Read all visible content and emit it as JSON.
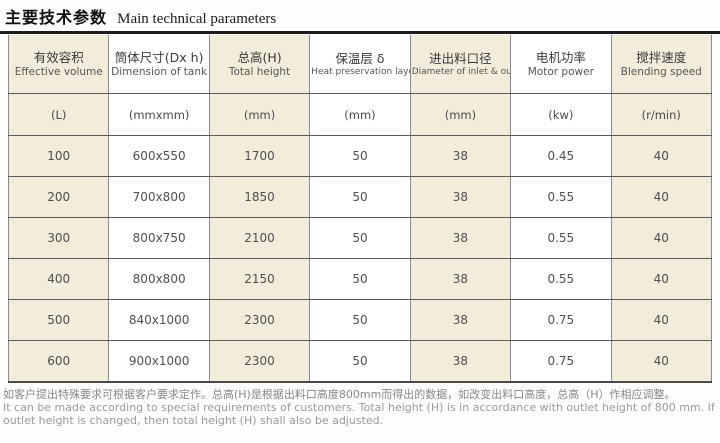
{
  "page": {
    "title_zh": "主要技术参数",
    "title_en": "Main technical parameters"
  },
  "table": {
    "columns": [
      {
        "zh": "有效容积",
        "en": "Effective volume",
        "unit": "(L)"
      },
      {
        "zh": "筒体尺寸(Dx h)",
        "en": "Dimension of tank",
        "unit": "(mmxmm)"
      },
      {
        "zh": "总高(H)",
        "en": "Total height",
        "unit": "(mm)"
      },
      {
        "zh": "保温层 δ",
        "en": "Heat preservation layer",
        "unit": "(mm)"
      },
      {
        "zh": "进出料口径",
        "en": "Diameter of inlet & outlet",
        "unit": "(mm)"
      },
      {
        "zh": "电机功率",
        "en": "Motor power",
        "unit": "(kw)"
      },
      {
        "zh": "搅拌速度",
        "en": "Blending speed",
        "unit": "(r/min)"
      }
    ],
    "rows": [
      [
        "100",
        "600x550",
        "1700",
        "50",
        "38",
        "0.45",
        "40"
      ],
      [
        "200",
        "700x800",
        "1850",
        "50",
        "38",
        "0.55",
        "40"
      ],
      [
        "300",
        "800x750",
        "2100",
        "50",
        "38",
        "0.55",
        "40"
      ],
      [
        "400",
        "800x800",
        "2150",
        "50",
        "38",
        "0.55",
        "40"
      ],
      [
        "500",
        "840x1000",
        "2300",
        "50",
        "38",
        "0.75",
        "40"
      ],
      [
        "600",
        "900x1000",
        "2300",
        "50",
        "38",
        "0.75",
        "40"
      ]
    ]
  },
  "footer": {
    "note_zh": "如客户提出特殊要求可根据客户要求定作。总高(H)是根据出料口高度800mm而得出的数据，如改变出料口高度，总高（H）作相应调整。",
    "note_en": "It can be made according to special requirements of customers. Total height (H) is in accordance with outlet height of 800 mm. If outlet height is changed, then total height (H) shall also be adjusted."
  },
  "colors": {
    "cell_shade": "#f2ecdb",
    "cell_white": "#ffffff",
    "title_rule": "#1d1d1d",
    "border_gray": "#8a8a8a",
    "footnote_gray": "#9a9a9a"
  }
}
